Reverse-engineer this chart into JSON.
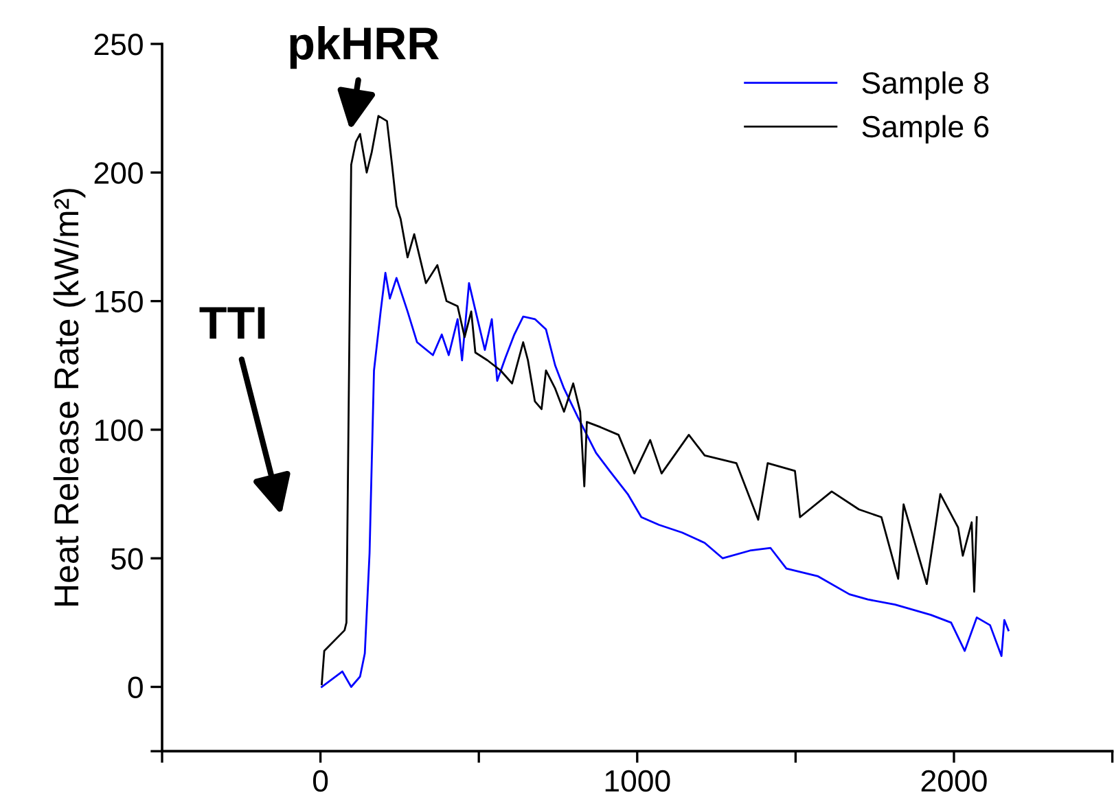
{
  "chart_data": {
    "type": "line",
    "ylabel": "Heat Release Rate (kW/m²)",
    "xlim": [
      -500,
      2500
    ],
    "ylim": [
      -25,
      250
    ],
    "xticks": [
      {
        "value": -500,
        "label": null
      },
      0,
      {
        "value": 500,
        "label": null
      },
      1000,
      {
        "value": 1500,
        "label": null
      },
      2000,
      {
        "value": 2500,
        "label": null
      }
    ],
    "yticks": [
      {
        "value": -25,
        "label": null
      },
      0,
      50,
      100,
      150,
      200,
      250
    ],
    "grid": false,
    "legend": "top right",
    "marker": "none",
    "line_style": "solid",
    "annotations": [
      "pkHRR",
      "TTI"
    ],
    "series": [
      {
        "name": "Sample 8",
        "color": "#0000ff",
        "x": [
          4,
          69,
          97,
          125,
          140,
          155,
          169,
          190,
          205,
          219,
          240,
          275,
          305,
          355,
          383,
          405,
          433,
          447,
          469,
          490,
          519,
          541,
          558,
          584,
          612,
          640,
          677,
          712,
          741,
          769,
          812,
          870,
          913,
          970,
          1013,
          1069,
          1142,
          1213,
          1270,
          1356,
          1421,
          1471,
          1571,
          1670,
          1728,
          1814,
          1927,
          1991,
          2034,
          2072,
          2114,
          2150,
          2159,
          2172
        ],
        "values": [
          0,
          6,
          0,
          4,
          13,
          52,
          123,
          146,
          161,
          151,
          159,
          146,
          134,
          129,
          137,
          129,
          143,
          127,
          157,
          146,
          131,
          143,
          119,
          128,
          137,
          144,
          143,
          139,
          125,
          116,
          105,
          91,
          84,
          75,
          66,
          63,
          60,
          56,
          50,
          53,
          54,
          46,
          43,
          36,
          34,
          32,
          28,
          25,
          14,
          27,
          24,
          12,
          26,
          22
        ]
      },
      {
        "name": "Sample 6",
        "color": "#000000",
        "x": [
          4,
          12,
          76,
          82,
          97,
          112,
          125,
          146,
          162,
          183,
          210,
          226,
          240,
          253,
          275,
          296,
          333,
          369,
          398,
          433,
          455,
          476,
          489,
          527,
          569,
          605,
          640,
          655,
          677,
          698,
          712,
          741,
          769,
          798,
          820,
          833,
          841,
          884,
          941,
          991,
          1041,
          1077,
          1163,
          1213,
          1313,
          1382,
          1412,
          1498,
          1514,
          1614,
          1700,
          1771,
          1824,
          1841,
          1914,
          1957,
          2013,
          2028,
          2056,
          2064,
          2072
        ],
        "values": [
          1,
          14,
          22,
          25,
          203,
          212,
          215,
          200,
          208,
          222,
          220,
          203,
          187,
          182,
          167,
          176,
          157,
          164,
          150,
          148,
          136,
          146,
          130,
          127,
          123,
          118,
          134,
          127,
          111,
          108,
          123,
          116,
          107,
          118,
          107,
          78,
          103,
          101,
          98,
          83,
          96,
          83,
          98,
          90,
          87,
          65,
          87,
          84,
          66,
          76,
          69,
          66,
          42,
          71,
          40,
          75,
          62,
          51,
          64,
          37,
          66
        ]
      }
    ]
  }
}
